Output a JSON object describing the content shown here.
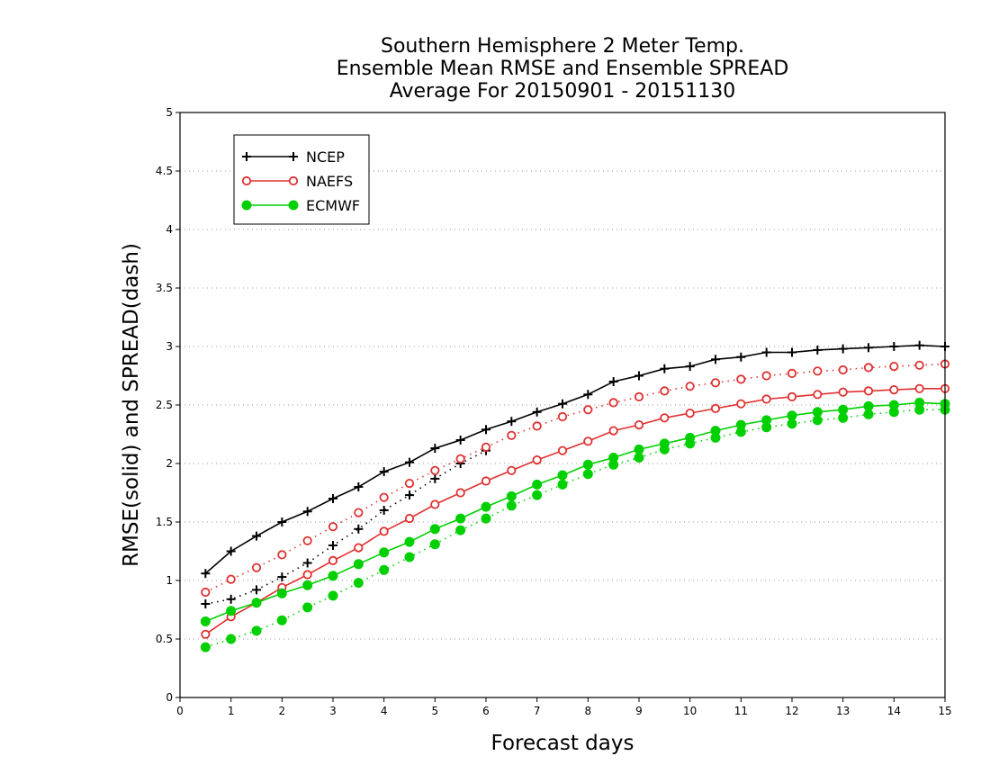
{
  "chart_data": {
    "type": "line",
    "title_lines": [
      "Southern Hemisphere 2 Meter Temp.",
      "Ensemble Mean RMSE and Ensemble SPREAD",
      "Average For 20150901 - 20151130"
    ],
    "xlabel": "Forecast days",
    "ylabel": "RMSE(solid) and SPREAD(dash)",
    "xlim": [
      0,
      15
    ],
    "ylim": [
      0,
      5
    ],
    "x_ticks": [
      0,
      1,
      2,
      3,
      4,
      5,
      6,
      7,
      8,
      9,
      10,
      11,
      12,
      13,
      14,
      15
    ],
    "y_ticks": [
      0,
      0.5,
      1,
      1.5,
      2,
      2.5,
      3,
      3.5,
      4,
      4.5,
      5
    ],
    "grid": "horizontal dotted",
    "legend_position": "top-left",
    "x": [
      0.5,
      1,
      1.5,
      2,
      2.5,
      3,
      3.5,
      4,
      4.5,
      5,
      5.5,
      6,
      6.5,
      7,
      7.5,
      8,
      8.5,
      9,
      9.5,
      10,
      10.5,
      11,
      11.5,
      12,
      12.5,
      13,
      13.5,
      14,
      14.5,
      15
    ],
    "series": [
      {
        "name": "NCEP",
        "color": "#000000",
        "marker": "plus",
        "rmse": [
          1.06,
          1.25,
          1.38,
          1.5,
          1.59,
          1.7,
          1.8,
          1.93,
          2.01,
          2.13,
          2.2,
          2.29,
          2.36,
          2.44,
          2.51,
          2.59,
          2.7,
          2.75,
          2.81,
          2.83,
          2.89,
          2.91,
          2.95,
          2.95,
          2.97,
          2.98,
          2.99,
          3.0,
          3.01,
          3.0
        ],
        "spread": [
          0.8,
          0.84,
          0.92,
          1.03,
          1.15,
          1.3,
          1.44,
          1.6,
          1.73,
          1.87,
          2.0,
          2.11,
          null,
          null,
          null,
          null,
          null,
          null,
          null,
          null,
          null,
          null,
          null,
          null,
          null,
          null,
          null,
          null,
          null,
          null
        ]
      },
      {
        "name": "NAEFS",
        "color": "#e03030",
        "marker": "circle-open",
        "rmse": [
          0.54,
          0.69,
          0.81,
          0.94,
          1.05,
          1.17,
          1.28,
          1.42,
          1.53,
          1.65,
          1.75,
          1.85,
          1.94,
          2.03,
          2.11,
          2.19,
          2.28,
          2.33,
          2.39,
          2.43,
          2.47,
          2.51,
          2.55,
          2.57,
          2.59,
          2.61,
          2.62,
          2.63,
          2.64,
          2.64
        ],
        "spread": [
          0.9,
          1.01,
          1.11,
          1.22,
          1.34,
          1.46,
          1.58,
          1.71,
          1.83,
          1.94,
          2.04,
          2.14,
          2.24,
          2.32,
          2.4,
          2.46,
          2.52,
          2.57,
          2.62,
          2.66,
          2.69,
          2.72,
          2.75,
          2.77,
          2.79,
          2.8,
          2.82,
          2.83,
          2.84,
          2.85
        ]
      },
      {
        "name": "ECMWF",
        "color": "#00d000",
        "marker": "circle-filled",
        "rmse": [
          0.65,
          0.74,
          0.81,
          0.89,
          0.96,
          1.04,
          1.14,
          1.24,
          1.33,
          1.44,
          1.53,
          1.63,
          1.72,
          1.82,
          1.9,
          1.99,
          2.05,
          2.12,
          2.17,
          2.22,
          2.28,
          2.33,
          2.37,
          2.41,
          2.44,
          2.46,
          2.49,
          2.5,
          2.52,
          2.51
        ],
        "spread": [
          0.43,
          0.5,
          0.57,
          0.66,
          0.77,
          0.87,
          0.98,
          1.09,
          1.2,
          1.31,
          1.43,
          1.53,
          1.64,
          1.73,
          1.82,
          1.91,
          1.99,
          2.05,
          2.12,
          2.17,
          2.22,
          2.27,
          2.31,
          2.34,
          2.37,
          2.39,
          2.42,
          2.44,
          2.46,
          2.46
        ]
      }
    ]
  }
}
